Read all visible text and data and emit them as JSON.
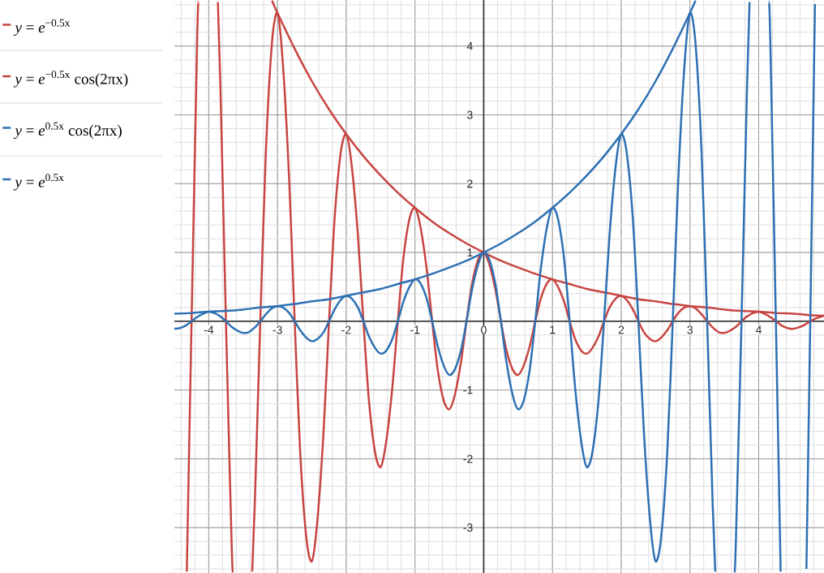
{
  "chart_data": {
    "type": "line",
    "xlim": [
      -4.5,
      4.95
    ],
    "ylim": [
      -3.66,
      4.67
    ],
    "xticks": [
      -4,
      -3,
      -2,
      -1,
      0,
      1,
      2,
      3,
      4
    ],
    "yticks": [
      -3,
      -2,
      -1,
      {
        "value": 0,
        "label": null
      },
      1,
      2,
      3,
      4
    ],
    "grid": true,
    "legend": "left",
    "line_style": "solid",
    "series": [
      {
        "name": "*y* = *e*$^{−0.5x}$",
        "color": "#c74440",
        "x": [
          -3.08,
          -3,
          -2.75,
          -2.5,
          -2.25,
          -2,
          -1.75,
          -1.5,
          -1.25,
          -1,
          -0.75,
          -0.5,
          -0.25,
          0,
          0.25,
          0.5,
          0.75,
          1,
          1.25,
          1.5,
          1.75,
          2,
          2.25,
          2.5,
          2.75,
          3,
          3.25,
          3.5,
          3.75,
          4,
          4.25,
          4.5,
          4.75,
          4.95
        ],
        "values": [
          4.66,
          4.48,
          3.96,
          3.49,
          3.08,
          2.72,
          2.4,
          2.12,
          1.87,
          1.65,
          1.45,
          1.28,
          1.13,
          1,
          0.88,
          0.78,
          0.69,
          0.61,
          0.54,
          0.47,
          0.42,
          0.37,
          0.32,
          0.29,
          0.25,
          0.22,
          0.2,
          0.17,
          0.15,
          0.14,
          0.12,
          0.11,
          0.09,
          0.08
        ]
      },
      {
        "name": "*y* = *e*$^{−0.5x}$ cos(2πx)",
        "color": "#c74440",
        "x": [
          -4.319,
          -4.25,
          -4.17,
          -4.151,
          -4,
          -3.867,
          -3.83,
          -3.75,
          -3.67,
          -3.65,
          -3.5,
          -3.368,
          -3.33,
          -3.25,
          -3.17,
          -3.08,
          -3,
          -2.92,
          -2.83,
          -2.75,
          -2.67,
          -2.58,
          -2.5,
          -2.42,
          -2.33,
          -2.25,
          -2.17,
          -2.08,
          -2,
          -1.92,
          -1.83,
          -1.75,
          -1.67,
          -1.58,
          -1.5,
          -1.42,
          -1.33,
          -1.25,
          -1.17,
          -1.08,
          -1,
          -0.92,
          -0.83,
          -0.75,
          -0.67,
          -0.58,
          -0.5,
          -0.42,
          -0.33,
          -0.25,
          -0.17,
          -0.08,
          0,
          0.08,
          0.17,
          0.25,
          0.33,
          0.42,
          0.5,
          0.58,
          0.67,
          0.75,
          0.83,
          0.92,
          1,
          1.08,
          1.17,
          1.25,
          1.33,
          1.42,
          1.5,
          1.58,
          1.67,
          1.75,
          1.83,
          1.92,
          2,
          2.08,
          2.17,
          2.25,
          2.33,
          2.42,
          2.5,
          2.58,
          2.67,
          2.75,
          2.83,
          2.92,
          3,
          3.08,
          3.17,
          3.25,
          3.33,
          3.42,
          3.5,
          3.58,
          3.67,
          3.75,
          3.83,
          3.92,
          4,
          4.08,
          4.17,
          4.25,
          4.33,
          4.42,
          4.5,
          4.58,
          4.67,
          4.75,
          4.83,
          4.92,
          4.95
        ],
        "values": [
          -3.64,
          0,
          4.02,
          4.64,
          null,
          4.64,
          3.4,
          0,
          -3.13,
          -3.65,
          null,
          -3.64,
          -2.65,
          0,
          2.44,
          4.05,
          4.48,
          3.72,
          2.06,
          0,
          -1.9,
          -3.15,
          -3.49,
          -2.9,
          -1.61,
          0,
          1.48,
          2.45,
          2.72,
          2.26,
          1.25,
          0,
          -1.15,
          -1.91,
          -2.12,
          -1.76,
          -0.97,
          0,
          0.9,
          1.49,
          1.65,
          1.37,
          0.76,
          0,
          -0.7,
          -1.16,
          -1.28,
          -1.07,
          -0.59,
          0,
          0.54,
          0.9,
          1,
          0.83,
          0.46,
          0,
          -0.42,
          -0.7,
          -0.78,
          -0.65,
          -0.36,
          0,
          0.33,
          0.55,
          0.61,
          0.5,
          0.28,
          0,
          -0.26,
          -0.43,
          -0.47,
          -0.39,
          -0.22,
          0,
          0.2,
          0.33,
          0.37,
          0.31,
          0.17,
          0,
          -0.16,
          -0.26,
          -0.29,
          -0.24,
          -0.13,
          0,
          0.12,
          0.2,
          0.22,
          0.19,
          0.1,
          0,
          -0.09,
          -0.16,
          -0.17,
          -0.14,
          -0.08,
          0,
          0.07,
          0.12,
          0.14,
          0.11,
          0.06,
          0,
          -0.06,
          -0.1,
          -0.11,
          -0.09,
          -0.05,
          0,
          0.04,
          0.07,
          0.08
        ]
      },
      {
        "name": "*y* = *e*$^{0.5x}$ cos(2πx)",
        "color": "#2d70b3",
        "x": [
          -4.5,
          -4.42,
          -4.33,
          -4.25,
          -4.17,
          -4.08,
          -4,
          -3.92,
          -3.83,
          -3.75,
          -3.67,
          -3.58,
          -3.5,
          -3.42,
          -3.33,
          -3.25,
          -3.17,
          -3.08,
          -3,
          -2.92,
          -2.83,
          -2.75,
          -2.67,
          -2.58,
          -2.5,
          -2.42,
          -2.33,
          -2.25,
          -2.17,
          -2.08,
          -2,
          -1.92,
          -1.83,
          -1.75,
          -1.67,
          -1.58,
          -1.5,
          -1.42,
          -1.33,
          -1.25,
          -1.17,
          -1.08,
          -1,
          -0.92,
          -0.83,
          -0.75,
          -0.67,
          -0.58,
          -0.5,
          -0.42,
          -0.33,
          -0.25,
          -0.17,
          -0.08,
          0,
          0.08,
          0.17,
          0.25,
          0.33,
          0.42,
          0.5,
          0.58,
          0.67,
          0.75,
          0.83,
          0.92,
          1,
          1.08,
          1.17,
          1.25,
          1.33,
          1.42,
          1.5,
          1.58,
          1.67,
          1.75,
          1.83,
          1.92,
          2,
          2.08,
          2.17,
          2.25,
          2.33,
          2.42,
          2.5,
          2.58,
          2.67,
          2.75,
          2.83,
          2.92,
          3,
          3.08,
          3.17,
          3.25,
          3.33,
          3.368,
          3.5,
          3.65,
          3.67,
          3.75,
          3.83,
          3.867,
          4,
          4.151,
          4.17,
          4.25,
          4.319,
          4.5,
          4.694,
          4.75,
          4.818
        ],
        "values": [
          -0.11,
          -0.1,
          -0.06,
          0,
          0.06,
          0.11,
          0.14,
          0.12,
          0.07,
          0,
          -0.08,
          -0.14,
          -0.17,
          -0.16,
          -0.09,
          0,
          0.1,
          0.19,
          0.22,
          0.2,
          0.12,
          0,
          -0.13,
          -0.24,
          -0.29,
          -0.26,
          -0.16,
          0,
          0.17,
          0.31,
          0.37,
          0.33,
          0.2,
          0,
          -0.22,
          -0.39,
          -0.47,
          -0.43,
          -0.26,
          0,
          0.28,
          0.5,
          0.61,
          0.55,
          0.33,
          0,
          -0.36,
          -0.65,
          -0.78,
          -0.7,
          -0.42,
          0,
          0.46,
          0.83,
          1,
          0.9,
          0.54,
          0,
          -0.59,
          -1.07,
          -1.28,
          -1.16,
          -0.7,
          0,
          0.76,
          1.37,
          1.65,
          1.49,
          0.9,
          0,
          -0.97,
          -1.76,
          -2.12,
          -1.91,
          -1.15,
          0,
          1.25,
          2.26,
          2.72,
          2.45,
          1.48,
          0,
          -1.61,
          -2.9,
          -3.49,
          -3.15,
          -1.9,
          0,
          2.06,
          3.72,
          4.48,
          4.05,
          2.44,
          0,
          -2.65,
          -3.64,
          null,
          -3.65,
          -3.13,
          0,
          3.4,
          4.64,
          null,
          4.64,
          4.02,
          0,
          -3.64,
          null,
          -3.6,
          0,
          4.61
        ]
      },
      {
        "name": "*y* = *e*$^{0.5x}$",
        "color": "#2d70b3",
        "x": [
          -4.5,
          -4.25,
          -4,
          -3.75,
          -3.5,
          -3.25,
          -3,
          -2.75,
          -2.5,
          -2.25,
          -2,
          -1.75,
          -1.5,
          -1.25,
          -1,
          -0.75,
          -0.5,
          -0.25,
          0,
          0.25,
          0.5,
          0.75,
          1,
          1.25,
          1.5,
          1.75,
          2,
          2.25,
          2.5,
          2.75,
          3,
          3.08
        ],
        "values": [
          0.11,
          0.12,
          0.14,
          0.15,
          0.17,
          0.2,
          0.22,
          0.25,
          0.29,
          0.32,
          0.37,
          0.42,
          0.47,
          0.54,
          0.61,
          0.69,
          0.78,
          0.88,
          1,
          1.13,
          1.28,
          1.45,
          1.65,
          1.87,
          2.12,
          2.4,
          2.72,
          3.08,
          3.49,
          3.96,
          4.48,
          4.66
        ]
      }
    ]
  }
}
